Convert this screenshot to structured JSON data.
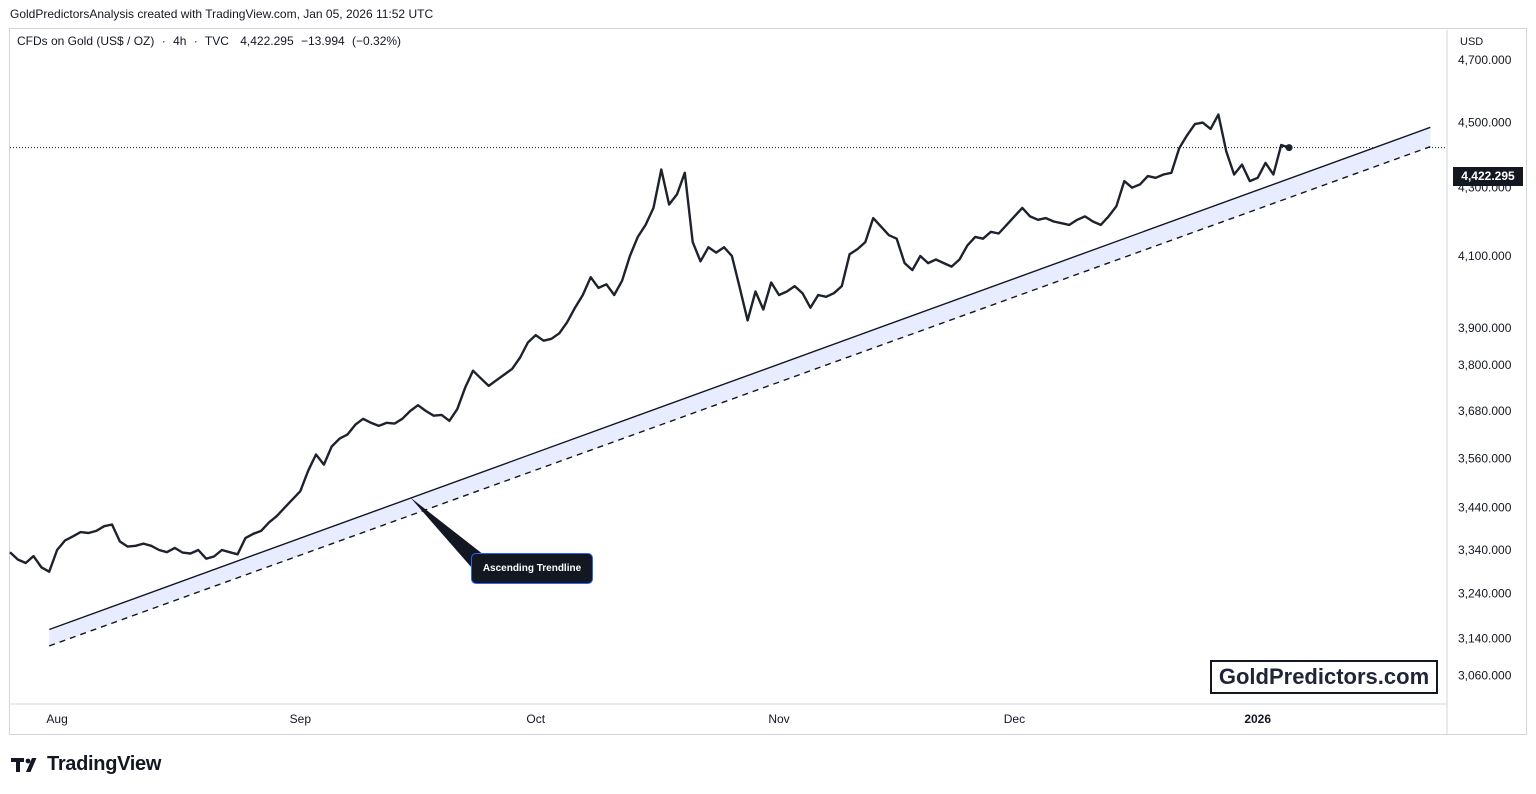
{
  "header": {
    "credit": "GoldPredictorsAnalysis created with TradingView.com, Jan 05, 2026 11:52 UTC"
  },
  "symbol": {
    "name": "CFDs on Gold (US$ / OZ)",
    "sep1": "·",
    "interval": "4h",
    "sep2": "·",
    "exchange": "TVC",
    "last": "4,422.295",
    "change": "−13.994",
    "change_pct": "(−0.32%)"
  },
  "price_axis": {
    "currency": "USD",
    "current_price": "4,422.295"
  },
  "annotations": {
    "callout": "Ascending Trendline",
    "watermark": "GoldPredictors.com"
  },
  "footer": {
    "logo_text": "TradingView"
  },
  "colors": {
    "price_line": "#1e222d",
    "trend_band": "#e8ecff",
    "callout_border": "#2962ff",
    "badge_bg": "#131722"
  },
  "chart_data": {
    "type": "line",
    "y_scale": "log",
    "ylim": [
      3000,
      4800
    ],
    "xlim": [
      "2025-07-26",
      "2026-01-25"
    ],
    "y_ticks": [
      "4,700.000",
      "4,500.000",
      "4,300.000",
      "4,100.000",
      "3,900.000",
      "3,800.000",
      "3,680.000",
      "3,560.000",
      "3,440.000",
      "3,340.000",
      "3,240.000",
      "3,140.000",
      "3,060.000"
    ],
    "x_ticks": [
      {
        "label": "Aug",
        "x": "2025-08-01"
      },
      {
        "label": "Sep",
        "x": "2025-09-01"
      },
      {
        "label": "Oct",
        "x": "2025-10-01"
      },
      {
        "label": "Nov",
        "x": "2025-11-01"
      },
      {
        "label": "Dec",
        "x": "2025-12-01"
      },
      {
        "label": "2026",
        "x": "2026-01-01",
        "bold": true
      }
    ],
    "series": [
      {
        "points": [
          [
            "2025-07-26",
            3335
          ],
          [
            "2025-07-27",
            3318
          ],
          [
            "2025-07-28",
            3310
          ],
          [
            "2025-07-29",
            3326
          ],
          [
            "2025-07-30",
            3300
          ],
          [
            "2025-07-31",
            3290
          ],
          [
            "2025-08-01",
            3340
          ],
          [
            "2025-08-02",
            3362
          ],
          [
            "2025-08-03",
            3372
          ],
          [
            "2025-08-04",
            3382
          ],
          [
            "2025-08-05",
            3380
          ],
          [
            "2025-08-06",
            3385
          ],
          [
            "2025-08-07",
            3396
          ],
          [
            "2025-08-08",
            3400
          ],
          [
            "2025-08-09",
            3360
          ],
          [
            "2025-08-10",
            3348
          ],
          [
            "2025-08-11",
            3350
          ],
          [
            "2025-08-12",
            3355
          ],
          [
            "2025-08-13",
            3350
          ],
          [
            "2025-08-14",
            3340
          ],
          [
            "2025-08-15",
            3335
          ],
          [
            "2025-08-16",
            3345
          ],
          [
            "2025-08-17",
            3334
          ],
          [
            "2025-08-18",
            3332
          ],
          [
            "2025-08-19",
            3340
          ],
          [
            "2025-08-20",
            3320
          ],
          [
            "2025-08-21",
            3325
          ],
          [
            "2025-08-22",
            3340
          ],
          [
            "2025-08-23",
            3335
          ],
          [
            "2025-08-24",
            3330
          ],
          [
            "2025-08-25",
            3368
          ],
          [
            "2025-08-26",
            3378
          ],
          [
            "2025-08-27",
            3385
          ],
          [
            "2025-08-28",
            3405
          ],
          [
            "2025-08-29",
            3420
          ],
          [
            "2025-08-30",
            3440
          ],
          [
            "2025-09-01",
            3480
          ],
          [
            "2025-09-02",
            3530
          ],
          [
            "2025-09-03",
            3570
          ],
          [
            "2025-09-04",
            3545
          ],
          [
            "2025-09-05",
            3590
          ],
          [
            "2025-09-06",
            3610
          ],
          [
            "2025-09-07",
            3620
          ],
          [
            "2025-09-08",
            3645
          ],
          [
            "2025-09-09",
            3660
          ],
          [
            "2025-09-10",
            3650
          ],
          [
            "2025-09-11",
            3642
          ],
          [
            "2025-09-12",
            3650
          ],
          [
            "2025-09-13",
            3648
          ],
          [
            "2025-09-14",
            3660
          ],
          [
            "2025-09-15",
            3680
          ],
          [
            "2025-09-16",
            3695
          ],
          [
            "2025-09-17",
            3680
          ],
          [
            "2025-09-18",
            3668
          ],
          [
            "2025-09-19",
            3670
          ],
          [
            "2025-09-20",
            3655
          ],
          [
            "2025-09-21",
            3685
          ],
          [
            "2025-09-22",
            3740
          ],
          [
            "2025-09-23",
            3785
          ],
          [
            "2025-09-24",
            3765
          ],
          [
            "2025-09-25",
            3745
          ],
          [
            "2025-09-26",
            3760
          ],
          [
            "2025-09-27",
            3775
          ],
          [
            "2025-09-28",
            3790
          ],
          [
            "2025-09-29",
            3820
          ],
          [
            "2025-09-30",
            3860
          ],
          [
            "2025-10-01",
            3880
          ],
          [
            "2025-10-02",
            3865
          ],
          [
            "2025-10-03",
            3870
          ],
          [
            "2025-10-04",
            3885
          ],
          [
            "2025-10-05",
            3915
          ],
          [
            "2025-10-06",
            3955
          ],
          [
            "2025-10-07",
            3990
          ],
          [
            "2025-10-08",
            4040
          ],
          [
            "2025-10-09",
            4010
          ],
          [
            "2025-10-10",
            4020
          ],
          [
            "2025-10-11",
            3990
          ],
          [
            "2025-10-12",
            4030
          ],
          [
            "2025-10-13",
            4100
          ],
          [
            "2025-10-14",
            4155
          ],
          [
            "2025-10-15",
            4190
          ],
          [
            "2025-10-16",
            4240
          ],
          [
            "2025-10-17",
            4355
          ],
          [
            "2025-10-18",
            4250
          ],
          [
            "2025-10-19",
            4280
          ],
          [
            "2025-10-20",
            4345
          ],
          [
            "2025-10-21",
            4140
          ],
          [
            "2025-10-22",
            4085
          ],
          [
            "2025-10-23",
            4125
          ],
          [
            "2025-10-24",
            4110
          ],
          [
            "2025-10-25",
            4125
          ],
          [
            "2025-10-26",
            4100
          ],
          [
            "2025-10-27",
            4010
          ],
          [
            "2025-10-28",
            3920
          ],
          [
            "2025-10-29",
            4000
          ],
          [
            "2025-10-30",
            3950
          ],
          [
            "2025-10-31",
            4025
          ],
          [
            "2025-11-01",
            3990
          ],
          [
            "2025-11-02",
            4000
          ],
          [
            "2025-11-03",
            4015
          ],
          [
            "2025-11-04",
            3995
          ],
          [
            "2025-11-05",
            3955
          ],
          [
            "2025-11-06",
            3990
          ],
          [
            "2025-11-07",
            3985
          ],
          [
            "2025-11-08",
            3995
          ],
          [
            "2025-11-09",
            4015
          ],
          [
            "2025-11-10",
            4105
          ],
          [
            "2025-11-11",
            4120
          ],
          [
            "2025-11-12",
            4140
          ],
          [
            "2025-11-13",
            4210
          ],
          [
            "2025-11-14",
            4185
          ],
          [
            "2025-11-15",
            4160
          ],
          [
            "2025-11-16",
            4150
          ],
          [
            "2025-11-17",
            4080
          ],
          [
            "2025-11-18",
            4060
          ],
          [
            "2025-11-19",
            4100
          ],
          [
            "2025-11-20",
            4080
          ],
          [
            "2025-11-21",
            4090
          ],
          [
            "2025-11-22",
            4080
          ],
          [
            "2025-11-23",
            4070
          ],
          [
            "2025-11-24",
            4090
          ],
          [
            "2025-11-25",
            4130
          ],
          [
            "2025-11-26",
            4155
          ],
          [
            "2025-11-27",
            4150
          ],
          [
            "2025-11-28",
            4170
          ],
          [
            "2025-11-29",
            4165
          ],
          [
            "2025-11-30",
            4190
          ],
          [
            "2025-12-01",
            4215
          ],
          [
            "2025-12-02",
            4240
          ],
          [
            "2025-12-03",
            4215
          ],
          [
            "2025-12-04",
            4205
          ],
          [
            "2025-12-05",
            4210
          ],
          [
            "2025-12-06",
            4200
          ],
          [
            "2025-12-07",
            4195
          ],
          [
            "2025-12-08",
            4190
          ],
          [
            "2025-12-09",
            4205
          ],
          [
            "2025-12-10",
            4215
          ],
          [
            "2025-12-11",
            4200
          ],
          [
            "2025-12-12",
            4190
          ],
          [
            "2025-12-13",
            4215
          ],
          [
            "2025-12-14",
            4245
          ],
          [
            "2025-12-15",
            4320
          ],
          [
            "2025-12-16",
            4300
          ],
          [
            "2025-12-17",
            4310
          ],
          [
            "2025-12-18",
            4335
          ],
          [
            "2025-12-19",
            4330
          ],
          [
            "2025-12-20",
            4340
          ],
          [
            "2025-12-21",
            4345
          ],
          [
            "2025-12-22",
            4420
          ],
          [
            "2025-12-23",
            4460
          ],
          [
            "2025-12-24",
            4495
          ],
          [
            "2025-12-25",
            4500
          ],
          [
            "2025-12-26",
            4480
          ],
          [
            "2025-12-27",
            4525
          ],
          [
            "2025-12-28",
            4410
          ],
          [
            "2025-12-29",
            4340
          ],
          [
            "2025-12-30",
            4370
          ],
          [
            "2025-12-31",
            4320
          ],
          [
            "2026-01-01",
            4330
          ],
          [
            "2026-01-02",
            4375
          ],
          [
            "2026-01-03",
            4340
          ],
          [
            "2026-01-04",
            4430
          ],
          [
            "2026-01-05",
            4422
          ]
        ]
      }
    ],
    "trendlines": [
      {
        "style": "solid",
        "from": [
          "2025-07-31",
          3160
        ],
        "to": [
          "2026-01-23",
          4485
        ]
      },
      {
        "style": "dashed",
        "from": [
          "2025-07-31",
          3124
        ],
        "to": [
          "2026-01-23",
          4425
        ]
      }
    ],
    "callout_target": [
      "2025-09-15",
      3465
    ]
  }
}
